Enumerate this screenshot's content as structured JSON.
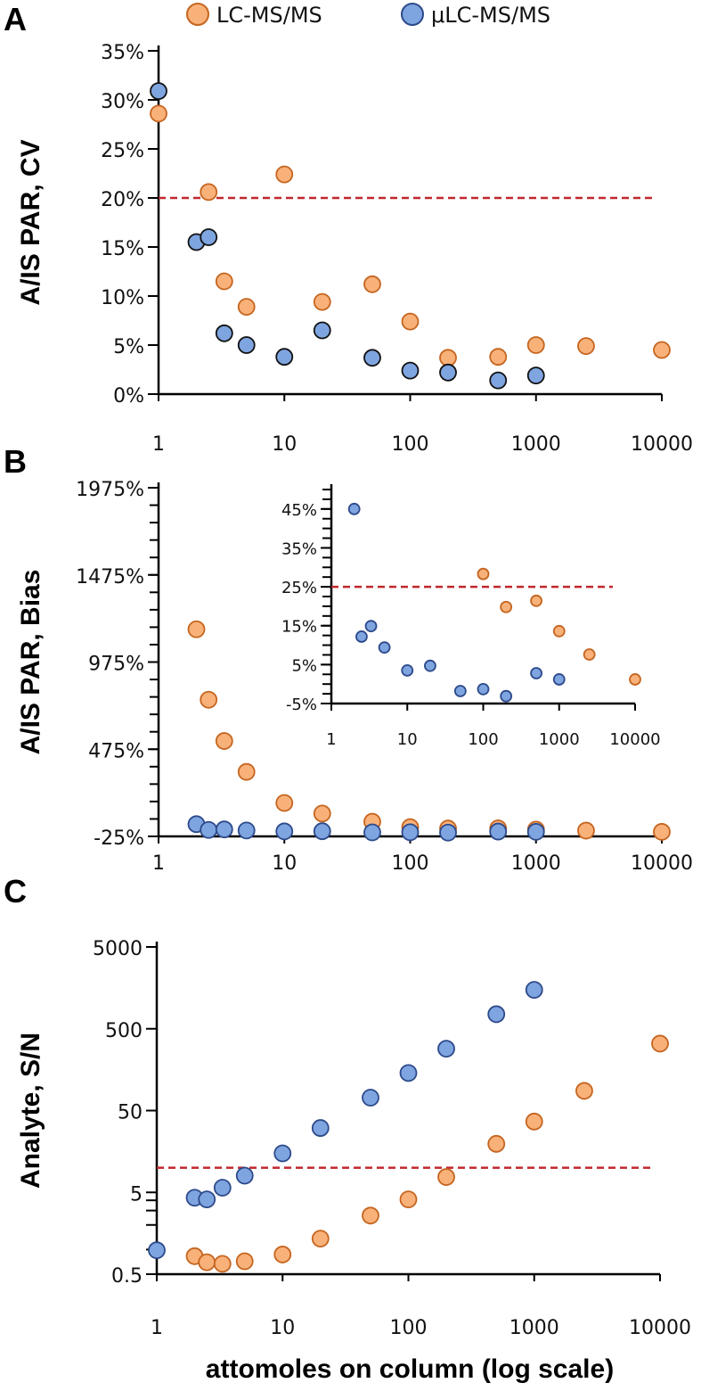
{
  "legend": [
    {
      "name": "LC-MS/MS",
      "fill": "#F9B17A",
      "stroke": "#C5651F"
    },
    {
      "name": "μLC-MS/MS",
      "fill": "#7FA5E0",
      "stroke": "#2D4A8A"
    }
  ],
  "threshold_color": "#C0272D",
  "xlabel": "attomoles on column (log scale)",
  "chart_data": [
    {
      "id": "A",
      "panel_label": "A",
      "type": "scatter",
      "ylabel": "A/IS PAR, CV",
      "xscale": "log",
      "xlim": [
        1,
        10000
      ],
      "xticks": [
        "1",
        "10",
        "100",
        "1000",
        "10000"
      ],
      "yscale": "linear",
      "ylim": [
        0,
        35
      ],
      "yticks": [
        {
          "v": 0,
          "label": "0%"
        },
        {
          "v": 5,
          "label": "5%"
        },
        {
          "v": 10,
          "label": "10%"
        },
        {
          "v": 15,
          "label": "15%"
        },
        {
          "v": 20,
          "label": "20%"
        },
        {
          "v": 25,
          "label": "25%"
        },
        {
          "v": 30,
          "label": "30%"
        },
        {
          "v": 35,
          "label": "35%"
        }
      ],
      "threshold": 20,
      "series": [
        {
          "name": "LC-MS/MS",
          "x": [
            1,
            2.5,
            3.33,
            5,
            10,
            20,
            50,
            100,
            200,
            500,
            1000,
            2500,
            10000
          ],
          "y": [
            28.6,
            20.6,
            11.5,
            8.9,
            22.4,
            9.4,
            11.2,
            7.4,
            3.7,
            3.8,
            5.0,
            4.9,
            4.5
          ]
        },
        {
          "name": "μLC-MS/MS",
          "x": [
            1,
            2,
            2.5,
            3.33,
            5,
            10,
            20,
            50,
            100,
            200,
            500,
            1000
          ],
          "y": [
            30.9,
            15.5,
            16.0,
            6.2,
            5.0,
            3.8,
            6.5,
            3.7,
            2.4,
            2.2,
            1.4,
            1.9
          ]
        }
      ]
    },
    {
      "id": "B",
      "panel_label": "B",
      "type": "scatter",
      "ylabel": "A/IS PAR, Bias",
      "xscale": "log",
      "xlim": [
        1,
        10000
      ],
      "xticks": [
        "1",
        "10",
        "100",
        "1000",
        "10000"
      ],
      "yscale": "linear",
      "ylim": [
        -25,
        1975
      ],
      "yticks": [
        {
          "v": -25,
          "label": "-25%"
        },
        {
          "v": 475,
          "label": "475%"
        },
        {
          "v": 975,
          "label": "975%"
        },
        {
          "v": 1475,
          "label": "1475%"
        },
        {
          "v": 1975,
          "label": "1975%"
        }
      ],
      "series": [
        {
          "name": "LC-MS/MS",
          "x": [
            2,
            2.5,
            3.33,
            5,
            10,
            20,
            50,
            100,
            200,
            500,
            1000,
            2500,
            10000
          ],
          "y": [
            1163,
            759,
            522,
            345,
            167,
            106,
            59,
            28,
            20,
            21,
            14,
            8,
            1
          ]
        },
        {
          "name": "μLC-MS/MS",
          "x": [
            2,
            2.5,
            3.33,
            5,
            10,
            20,
            50,
            100,
            200,
            500,
            1000
          ],
          "y": [
            45,
            12,
            15,
            9,
            3.5,
            4.7,
            -1.8,
            -1.3,
            -3.1,
            2.8,
            1.2
          ]
        }
      ]
    },
    {
      "id": "B-inset",
      "type": "scatter",
      "xscale": "log",
      "xlim": [
        1,
        10000
      ],
      "xticks": [
        "1",
        "10",
        "100",
        "1000",
        "10000"
      ],
      "yscale": "linear",
      "ylim": [
        -5,
        50
      ],
      "yticks": [
        {
          "v": -5,
          "label": "-5%"
        },
        {
          "v": 5,
          "label": "5%"
        },
        {
          "v": 15,
          "label": "15%"
        },
        {
          "v": 25,
          "label": "25%"
        },
        {
          "v": 35,
          "label": "35%"
        },
        {
          "v": 45,
          "label": "45%"
        }
      ],
      "threshold": 25,
      "series": [
        {
          "name": "LC-MS/MS",
          "x": [
            100,
            200,
            500,
            1000,
            2500,
            10000
          ],
          "y": [
            28.3,
            19.8,
            21.4,
            13.6,
            7.6,
            1.2
          ]
        },
        {
          "name": "μLC-MS/MS",
          "x": [
            2,
            2.5,
            3.33,
            5,
            10,
            20,
            50,
            100,
            200,
            500,
            1000
          ],
          "y": [
            45,
            12.2,
            14.9,
            9.4,
            3.5,
            4.7,
            -1.8,
            -1.3,
            -3.1,
            2.8,
            1.2
          ]
        }
      ]
    },
    {
      "id": "C",
      "panel_label": "C",
      "type": "scatter",
      "ylabel": "Analyte, S/N",
      "xscale": "log",
      "xlim": [
        1,
        10000
      ],
      "xticks": [
        "1",
        "10",
        "100",
        "1000",
        "10000"
      ],
      "yscale": "log",
      "ylim": [
        0.5,
        5000
      ],
      "yticks": [
        {
          "v": 0.5,
          "label": "0.5"
        },
        {
          "v": 5,
          "label": "5"
        },
        {
          "v": 50,
          "label": "50"
        },
        {
          "v": 500,
          "label": "500"
        },
        {
          "v": 5000,
          "label": "5000"
        }
      ],
      "threshold": 10,
      "series": [
        {
          "name": "LC-MS/MS",
          "x": [
            2,
            2.5,
            3.33,
            5,
            10,
            20,
            50,
            100,
            200,
            500,
            1000,
            2500,
            10000
          ],
          "y": [
            0.83,
            0.7,
            0.67,
            0.72,
            0.87,
            1.36,
            2.6,
            4.1,
            7.7,
            19.6,
            36.7,
            87,
            329
          ]
        },
        {
          "name": "μLC-MS/MS",
          "x": [
            1,
            2,
            2.5,
            3.33,
            5,
            10,
            20,
            50,
            100,
            200,
            500,
            1000
          ],
          "y": [
            0.98,
            4.3,
            4.1,
            5.7,
            8.0,
            15,
            30.6,
            72,
            144,
            285,
            753,
            1493
          ]
        }
      ]
    }
  ]
}
